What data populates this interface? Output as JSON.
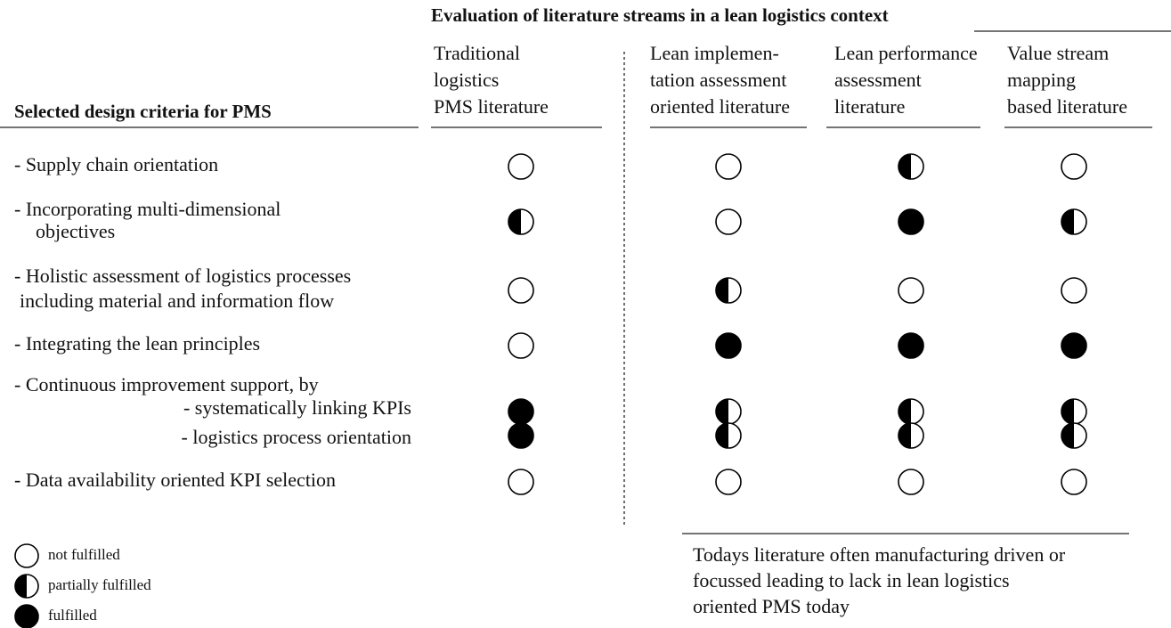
{
  "header": {
    "title": "Evaluation of literature streams in a lean logistics context"
  },
  "row_header": "Selected design criteria for PMS",
  "columns": [
    {
      "lines": [
        "Traditional",
        "logistics",
        "PMS literature"
      ]
    },
    {
      "lines": [
        "Lean implemen-",
        "tation assessment",
        "oriented literature"
      ]
    },
    {
      "lines": [
        "Lean performance",
        "assessment",
        "literature"
      ]
    },
    {
      "lines": [
        "Value stream",
        "mapping",
        "based literature"
      ]
    }
  ],
  "rows": [
    {
      "lines": [
        "- Supply chain orientation"
      ],
      "status": [
        0,
        0,
        1,
        0
      ]
    },
    {
      "lines": [
        "- Incorporating multi-dimensional",
        "objectives"
      ],
      "status": [
        1,
        0,
        2,
        1
      ]
    },
    {
      "lines": [
        "- Holistic assessment of logistics processes",
        "including material and information flow"
      ],
      "status": [
        0,
        1,
        0,
        0
      ]
    },
    {
      "lines": [
        "- Integrating the lean principles"
      ],
      "status": [
        0,
        2,
        2,
        2
      ]
    },
    {
      "lines": [
        "- Continuous improvement support, by"
      ],
      "subrows": [
        {
          "label": "- systematically linking KPIs",
          "status": [
            2,
            1,
            1,
            1
          ]
        },
        {
          "label": "- logistics process orientation",
          "status": [
            2,
            1,
            1,
            1
          ]
        }
      ]
    },
    {
      "lines": [
        "- Data availability oriented KPI selection"
      ],
      "status": [
        0,
        0,
        0,
        0
      ]
    }
  ],
  "legend": [
    {
      "label": "not fulfilled"
    },
    {
      "label": "partially fulfilled"
    },
    {
      "label": "fulfilled"
    }
  ],
  "note": {
    "lines": [
      "Todays literature often manufacturing driven or",
      "focussed leading to lack in lean logistics",
      "oriented PMS today"
    ]
  }
}
